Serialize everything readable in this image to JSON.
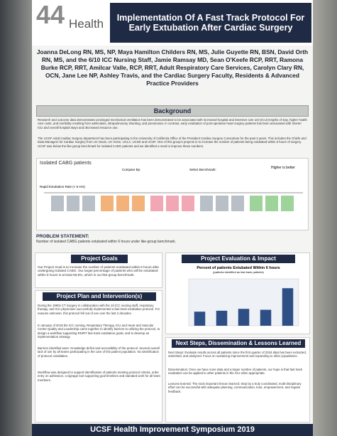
{
  "header": {
    "logo_number": "44",
    "logo_word": "Health",
    "title": "Implementation Of A Fast Track Protocol For Early Extubation After Cardiac Surgery"
  },
  "authors": "Joanna DeLong RN, MS, NP, Maya Hamilton Childers RN, MS, Julie Guyette RN, BSN, David Orth RN, MS, and the 6/10 ICC Nursing Staff, Jamie Ramsay MD, Sean O'Keefe RCP, RRT, Ramona Burke RCP, RRT, Amilcar Valle, RCP, RRT, Adult Respiratory Care Services, Carolyn Clary RN, OCN, Jane Lee NP, Ashley Travis, and the Cardiac Surgery Faculty, Residents & Advanced Practice Providers",
  "background": {
    "heading": "Background",
    "p1": "Research and outcome data demonstrates prolonged mechanical ventilation has been demonstrated to be associated with increased hospital and intensive care unit (ICU) lengths of stay, higher health care costs, and morbidity resulting from atelectasis, intrapulmonary shunting, and pneumonia. In contrast, early extubation of post-operative heart surgery patients has been associated with shorter ICU and overall hospital stays and decreased resource use.",
    "p2": "The UCSF Adult Cardiac Surgery department has been participating in the University of California Office of the President Cardiac Surgery Consortium for the past 3 years. This includes the Chiefs and Data Managers for Cardiac Surgery from UC Davis, UC Irvine, UCLA, UCSD and UCSF. One of this group's projects is to increase the number of patients being extubated within 6 hours of surgery. UCSF was below the like-group benchmark for isolated CABG patients and we identified a need to improve these numbers.",
    "panel_title": "Isolated CABG patients",
    "compare_by": "Compare By:",
    "select_benchmark": "Select Benchmark:",
    "higher_better": "Higher is better",
    "rate_label": "Rapid Extubation Rate (< 6 Hrs)"
  },
  "problem": {
    "heading": "PROBLEM STATEMENT:",
    "text": "Number of isolated CABG patients extubated within 6 hours under like-group benchmark."
  },
  "goals": {
    "heading": "Project Goals",
    "text": "Our Project Goal is to increase the number of patients extubated within 6 hours after undergoing isolated CABG. Our target percentage of patients who will be extubated within 6 hours is at least 56.8%, which is our like-group benchmark."
  },
  "plan": {
    "heading": "Project Plan and Intervention(s)",
    "p1": "During the 1990s CT Surgery in collaboration with the 10 ICC nursing staff, respiratory therapy, and ICU physicians successfully implemented a fast track extubation protocol. For reasons unknown, this protocol fell out of use over the last 2 decades.",
    "p2": "In January of 2019 the ICC nursing, Respiratory Therapy, ICU and Heart and Vascular Center Quality and Leadership came together to identify barriers to utilizing the protocol, to design a workflow supporting RN/RT fast track extubation goals, and to develop an implementation strategy.",
    "barriers": "Barriers identified were: Knowledge deficit and accessibility of the protocol. Several overall lack of use by all teams participating in the care of this patient population. No identification of protocol candidates.",
    "p3": "Workflow was designed to support identification of patients meeting protocol criteria, order entry on admission, a signage tool supporting goal timelines and standard work for all team members."
  },
  "evaluation": {
    "heading": "Project Evaluation & Impact",
    "chart_data": {
      "type": "bar",
      "title": "Percent of patients Extubated Within 6 hours",
      "subtitle": "(patients identified as fast track patients)",
      "values": [
        30,
        32,
        36,
        34,
        80
      ],
      "color": "#2d4f86",
      "ylim": [
        0,
        100
      ]
    }
  },
  "next": {
    "heading": "Next Steps, Dissemination & Lessons Learned",
    "p1": "Next Steps: Evaluate results across all patients since the first quarter of 2019 data has been extracted, submitted, and analyzed. Focus on sustaining improvement and expanding to other populations.",
    "p2": "Dissemination: Once we have more data and a larger number of patients, our hope is that fast track extubation can be applied to other patients in the ICU when appropriate.",
    "p3": "Lessons learned: The most important lesson learned: Step by a truly coordinated, multi-disciplinary effort can be successful with adequate planning, communication, trust, empowerment, and regular feedback."
  },
  "footer": "UCSF Health Improvement Symposium 2019"
}
